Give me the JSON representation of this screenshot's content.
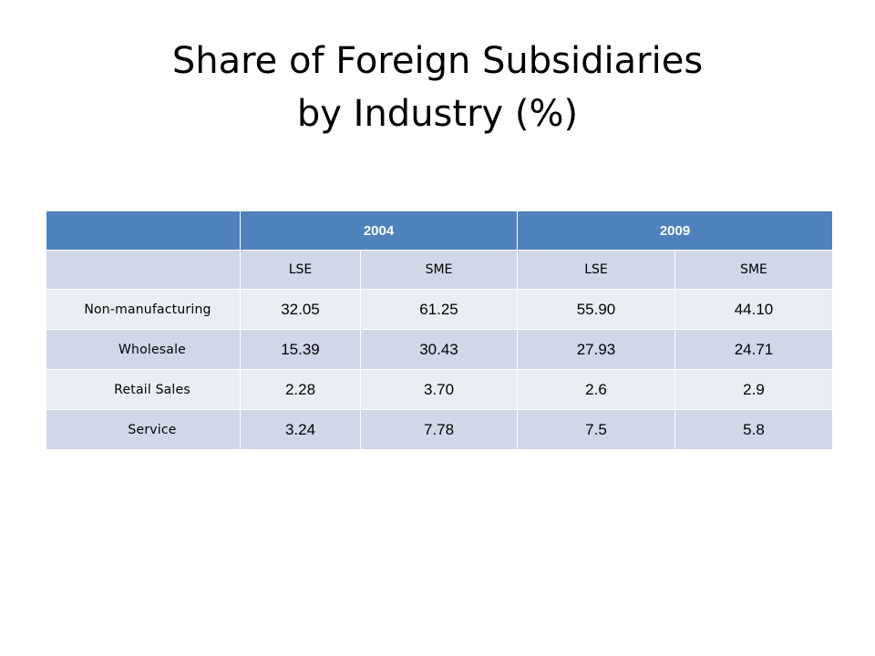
{
  "slide": {
    "title_line1": "Share of Foreign Subsidiaries",
    "title_line2": "by Industry (%)"
  },
  "table": {
    "header_corner": "",
    "years": [
      "2004",
      "2009"
    ],
    "subheaders": [
      "LSE",
      "SME",
      "LSE",
      "SME"
    ],
    "rows": [
      {
        "label": "Non-manufacturing",
        "values": [
          "32.05",
          "61.25",
          "55.90",
          "44.10"
        ]
      },
      {
        "label": "Wholesale",
        "values": [
          "15.39",
          "30.43",
          "27.93",
          "24.71"
        ]
      },
      {
        "label": "Retail Sales",
        "values": [
          "2.28",
          "3.70",
          "2.6",
          "2.9"
        ]
      },
      {
        "label": "Service",
        "values": [
          "3.24",
          "7.78",
          "7.5",
          "5.8"
        ]
      }
    ]
  },
  "colors": {
    "header_bg": "#4f81bd",
    "row_light": "#e9edf4",
    "row_dark": "#d0d8e8"
  }
}
